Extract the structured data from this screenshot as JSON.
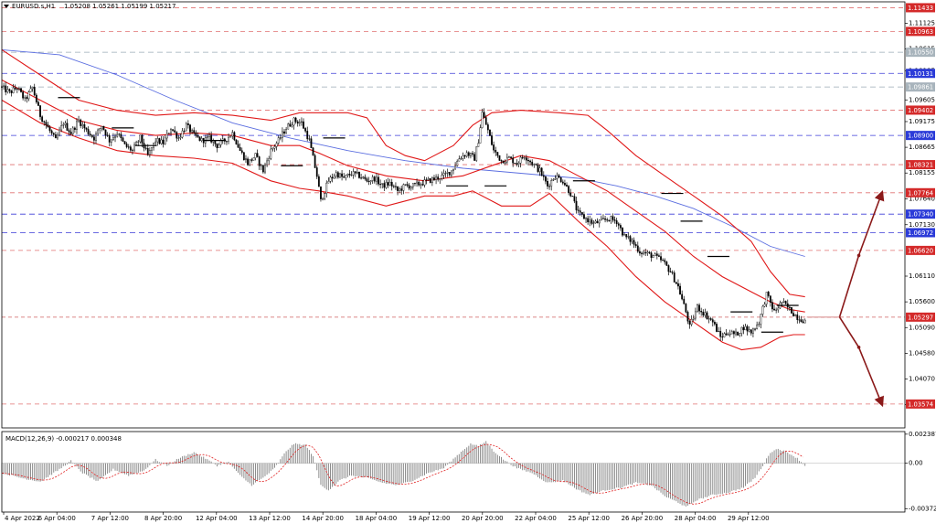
{
  "chart_data": {
    "type": "candlestick",
    "header": {
      "symbol_timeframe": "EURUSD.s,H1",
      "ohlc": "1.05208 1.05261 1.05199 1.05217"
    },
    "price_axis": {
      "ylim": [
        1.031,
        1.1155
      ],
      "ticks": [
        {
          "label": "1.11125",
          "value": 1.11125
        },
        {
          "label": "1.10615",
          "value": 1.10615
        },
        {
          "label": "1.10185",
          "value": 1.10185
        },
        {
          "label": "1.09605",
          "value": 1.09605
        },
        {
          "label": "1.09175",
          "value": 1.09175
        },
        {
          "label": "1.08665",
          "value": 1.08665
        },
        {
          "label": "1.08155",
          "value": 1.08155
        },
        {
          "label": "1.07640",
          "value": 1.0764
        },
        {
          "label": "1.07130",
          "value": 1.0713
        },
        {
          "label": "1.06110",
          "value": 1.0611
        },
        {
          "label": "1.05600",
          "value": 1.056
        },
        {
          "label": "1.05090",
          "value": 1.0509
        },
        {
          "label": "1.04580",
          "value": 1.0458
        },
        {
          "label": "1.04070",
          "value": 1.0407
        },
        {
          "label": "1.03560",
          "value": 1.0356
        }
      ],
      "levels": [
        {
          "label": "1.11433",
          "value": 1.11433,
          "kind": "resistance",
          "style": "red"
        },
        {
          "label": "1.10963",
          "value": 1.10963,
          "kind": "resistance",
          "style": "red"
        },
        {
          "label": "1.10550",
          "value": 1.1055,
          "kind": "pivot",
          "style": "gray"
        },
        {
          "label": "1.10131",
          "value": 1.10131,
          "kind": "support",
          "style": "blue"
        },
        {
          "label": "1.09861",
          "value": 1.09861,
          "kind": "pivot",
          "style": "gray"
        },
        {
          "label": "1.09402",
          "value": 1.09402,
          "kind": "resistance",
          "style": "red"
        },
        {
          "label": "1.08900",
          "value": 1.089,
          "kind": "support",
          "style": "blue"
        },
        {
          "label": "1.08321",
          "value": 1.08321,
          "kind": "resistance",
          "style": "red"
        },
        {
          "label": "1.07764",
          "value": 1.07764,
          "kind": "resistance",
          "style": "red"
        },
        {
          "label": "1.07340",
          "value": 1.0734,
          "kind": "support",
          "style": "blue"
        },
        {
          "label": "1.06972",
          "value": 1.06972,
          "kind": "support",
          "style": "blue"
        },
        {
          "label": "1.06620",
          "value": 1.0662,
          "kind": "resistance",
          "style": "red"
        },
        {
          "label": "1.05297",
          "value": 1.05297,
          "kind": "current",
          "style": "red"
        },
        {
          "label": "1.03574",
          "value": 1.03574,
          "kind": "resistance",
          "style": "red"
        }
      ],
      "hidden_label": "1.05217"
    },
    "time_axis": {
      "labels": [
        "4 Apr 2022",
        "6 Apr 04:00",
        "7 Apr 12:00",
        "8 Apr 20:00",
        "12 Apr 04:00",
        "13 Apr 12:00",
        "14 Apr 20:00",
        "18 Apr 04:00",
        "19 Apr 12:00",
        "20 Apr 20:00",
        "22 Apr 04:00",
        "25 Apr 12:00",
        "26 Apr 20:00",
        "28 Apr 04:00",
        "29 Apr 12:00"
      ]
    },
    "price_path": [
      [
        0,
        1.0985
      ],
      [
        4,
        1.0975
      ],
      [
        8,
        1.0985
      ],
      [
        12,
        1.096
      ],
      [
        16,
        1.0985
      ],
      [
        20,
        1.093
      ],
      [
        24,
        1.0905
      ],
      [
        28,
        1.088
      ],
      [
        32,
        1.0915
      ],
      [
        36,
        1.0895
      ],
      [
        40,
        1.092
      ],
      [
        44,
        1.09
      ],
      [
        48,
        1.0885
      ],
      [
        52,
        1.091
      ],
      [
        56,
        1.088
      ],
      [
        60,
        1.0895
      ],
      [
        64,
        1.087
      ],
      [
        68,
        1.086
      ],
      [
        72,
        1.0885
      ],
      [
        76,
        1.085
      ],
      [
        80,
        1.088
      ],
      [
        84,
        1.0875
      ],
      [
        88,
        1.0905
      ],
      [
        92,
        1.0885
      ],
      [
        96,
        1.091
      ],
      [
        100,
        1.089
      ],
      [
        104,
        1.088
      ],
      [
        108,
        1.0885
      ],
      [
        112,
        1.087
      ],
      [
        116,
        1.088
      ],
      [
        120,
        1.0895
      ],
      [
        124,
        1.086
      ],
      [
        128,
        1.0835
      ],
      [
        132,
        1.085
      ],
      [
        136,
        1.082
      ],
      [
        140,
        1.086
      ],
      [
        144,
        1.088
      ],
      [
        148,
        1.0905
      ],
      [
        152,
        1.092
      ],
      [
        156,
        1.0915
      ],
      [
        160,
        1.088
      ],
      [
        164,
        1.081
      ],
      [
        166,
        1.076
      ],
      [
        170,
        1.08
      ],
      [
        174,
        1.0815
      ],
      [
        178,
        1.0805
      ],
      [
        182,
        1.0815
      ],
      [
        186,
        1.081
      ],
      [
        190,
        1.08
      ],
      [
        194,
        1.0805
      ],
      [
        198,
        1.079
      ],
      [
        202,
        1.0795
      ],
      [
        206,
        1.078
      ],
      [
        210,
        1.079
      ],
      [
        214,
        1.079
      ],
      [
        218,
        1.0795
      ],
      [
        222,
        1.08
      ],
      [
        226,
        1.0805
      ],
      [
        230,
        1.081
      ],
      [
        234,
        1.082
      ],
      [
        238,
        1.0845
      ],
      [
        242,
        1.0855
      ],
      [
        246,
        1.0845
      ],
      [
        248,
        1.088
      ],
      [
        250,
        1.0935
      ],
      [
        253,
        1.09
      ],
      [
        256,
        1.086
      ],
      [
        260,
        1.084
      ],
      [
        264,
        1.0845
      ],
      [
        268,
        1.0835
      ],
      [
        272,
        1.085
      ],
      [
        276,
        1.0835
      ],
      [
        280,
        1.082
      ],
      [
        284,
        1.079
      ],
      [
        288,
        1.081
      ],
      [
        292,
        1.08
      ],
      [
        296,
        1.0775
      ],
      [
        300,
        1.0735
      ],
      [
        304,
        1.0725
      ],
      [
        308,
        1.0715
      ],
      [
        312,
        1.072
      ],
      [
        316,
        1.0725
      ],
      [
        320,
        1.072
      ],
      [
        324,
        1.069
      ],
      [
        328,
        1.068
      ],
      [
        332,
        1.066
      ],
      [
        336,
        1.0655
      ],
      [
        340,
        1.065
      ],
      [
        344,
        1.064
      ],
      [
        348,
        1.062
      ],
      [
        352,
        1.059
      ],
      [
        356,
        1.054
      ],
      [
        358,
        1.051
      ],
      [
        362,
        1.055
      ],
      [
        366,
        1.0535
      ],
      [
        370,
        1.052
      ],
      [
        374,
        1.049
      ],
      [
        378,
        1.05
      ],
      [
        382,
        1.0495
      ],
      [
        386,
        1.051
      ],
      [
        390,
        1.05
      ],
      [
        394,
        1.052
      ],
      [
        398,
        1.0575
      ],
      [
        402,
        1.054
      ],
      [
        406,
        1.056
      ],
      [
        410,
        1.0545
      ],
      [
        414,
        1.053
      ],
      [
        418,
        1.0522
      ]
    ],
    "bollinger_upper": [
      [
        0,
        1.106
      ],
      [
        20,
        1.101
      ],
      [
        40,
        1.096
      ],
      [
        60,
        1.094
      ],
      [
        80,
        1.093
      ],
      [
        100,
        1.0935
      ],
      [
        120,
        1.093
      ],
      [
        140,
        1.092
      ],
      [
        155,
        1.0935
      ],
      [
        165,
        1.0935
      ],
      [
        180,
        1.0935
      ],
      [
        190,
        1.0925
      ],
      [
        200,
        1.087
      ],
      [
        210,
        1.085
      ],
      [
        220,
        1.084
      ],
      [
        235,
        1.087
      ],
      [
        245,
        1.091
      ],
      [
        255,
        1.0935
      ],
      [
        270,
        1.094
      ],
      [
        290,
        1.0935
      ],
      [
        305,
        1.093
      ],
      [
        315,
        1.09
      ],
      [
        330,
        1.085
      ],
      [
        345,
        1.081
      ],
      [
        360,
        1.077
      ],
      [
        375,
        1.073
      ],
      [
        390,
        1.068
      ],
      [
        400,
        1.062
      ],
      [
        410,
        1.0575
      ],
      [
        418,
        1.057
      ]
    ],
    "bollinger_middle": [
      [
        0,
        1.1
      ],
      [
        20,
        1.096
      ],
      [
        40,
        1.092
      ],
      [
        60,
        1.09
      ],
      [
        80,
        1.089
      ],
      [
        100,
        1.0895
      ],
      [
        120,
        1.089
      ],
      [
        140,
        1.087
      ],
      [
        155,
        1.087
      ],
      [
        165,
        1.0855
      ],
      [
        180,
        1.083
      ],
      [
        200,
        1.081
      ],
      [
        220,
        1.08
      ],
      [
        240,
        1.081
      ],
      [
        255,
        1.083
      ],
      [
        270,
        1.085
      ],
      [
        285,
        1.084
      ],
      [
        300,
        1.081
      ],
      [
        315,
        1.078
      ],
      [
        330,
        1.074
      ],
      [
        345,
        1.07
      ],
      [
        360,
        1.065
      ],
      [
        375,
        1.061
      ],
      [
        390,
        1.058
      ],
      [
        400,
        1.056
      ],
      [
        410,
        1.0545
      ],
      [
        418,
        1.054
      ]
    ],
    "bollinger_lower": [
      [
        0,
        1.096
      ],
      [
        20,
        1.0915
      ],
      [
        40,
        1.0885
      ],
      [
        60,
        1.086
      ],
      [
        80,
        1.085
      ],
      [
        100,
        1.0845
      ],
      [
        120,
        1.0835
      ],
      [
        140,
        1.08
      ],
      [
        155,
        1.0785
      ],
      [
        165,
        1.078
      ],
      [
        180,
        1.077
      ],
      [
        200,
        1.075
      ],
      [
        210,
        1.076
      ],
      [
        220,
        1.077
      ],
      [
        235,
        1.077
      ],
      [
        245,
        1.078
      ],
      [
        260,
        1.075
      ],
      [
        275,
        1.075
      ],
      [
        285,
        1.0775
      ],
      [
        300,
        1.072
      ],
      [
        315,
        1.067
      ],
      [
        330,
        1.061
      ],
      [
        345,
        1.056
      ],
      [
        360,
        1.052
      ],
      [
        375,
        1.048
      ],
      [
        385,
        1.0465
      ],
      [
        395,
        1.047
      ],
      [
        405,
        1.049
      ],
      [
        412,
        1.0495
      ],
      [
        418,
        1.0495
      ]
    ],
    "moving_average": [
      [
        0,
        1.106
      ],
      [
        30,
        1.105
      ],
      [
        60,
        1.101
      ],
      [
        90,
        1.096
      ],
      [
        120,
        1.0915
      ],
      [
        150,
        1.0885
      ],
      [
        180,
        1.086
      ],
      [
        210,
        1.084
      ],
      [
        240,
        1.0825
      ],
      [
        270,
        1.0815
      ],
      [
        300,
        1.0805
      ],
      [
        320,
        1.079
      ],
      [
        340,
        1.077
      ],
      [
        360,
        1.0745
      ],
      [
        380,
        1.071
      ],
      [
        400,
        1.067
      ],
      [
        418,
        1.065
      ]
    ],
    "pivot_marks": [
      [
        34,
        1.0965
      ],
      [
        62,
        1.0905
      ],
      [
        74,
        1.087
      ],
      [
        110,
        1.088
      ],
      [
        150,
        1.083
      ],
      [
        172,
        1.0885
      ],
      [
        236,
        1.079
      ],
      [
        256,
        1.079
      ],
      [
        302,
        1.08
      ],
      [
        348,
        1.0775
      ],
      [
        358,
        1.072
      ],
      [
        372,
        1.065
      ],
      [
        384,
        1.054
      ],
      [
        400,
        1.05
      ],
      [
        408,
        1.0553
      ]
    ],
    "projection": {
      "origin": [
        436,
        1.05297
      ],
      "up": [
        [
          436,
          1.05297
        ],
        [
          446,
          1.0652
        ],
        [
          458,
          1.0776
        ]
      ],
      "down": [
        [
          436,
          1.05297
        ],
        [
          446,
          1.047
        ],
        [
          458,
          1.0357
        ]
      ]
    },
    "macd": {
      "label": "MACD(12,26,9) -0.000217 0.000348",
      "ylim": [
        -0.004,
        0.0026
      ],
      "ticks": [
        {
          "label": "0.002387",
          "value": 0.002387
        },
        {
          "label": "0.00",
          "value": 0.0
        },
        {
          "label": "-0.003721",
          "value": -0.003721
        }
      ],
      "histogram": [
        [
          0,
          -0.0008
        ],
        [
          10,
          -0.0012
        ],
        [
          20,
          -0.0015
        ],
        [
          30,
          -0.0005
        ],
        [
          36,
          0.0002
        ],
        [
          42,
          -0.0008
        ],
        [
          50,
          -0.0015
        ],
        [
          58,
          -0.0005
        ],
        [
          66,
          -0.001
        ],
        [
          74,
          -0.0006
        ],
        [
          80,
          0.0003
        ],
        [
          86,
          -0.0002
        ],
        [
          92,
          0.0004
        ],
        [
          100,
          0.0009
        ],
        [
          106,
          0.0004
        ],
        [
          112,
          -0.0002
        ],
        [
          118,
          0.0001
        ],
        [
          124,
          -0.001
        ],
        [
          130,
          -0.0018
        ],
        [
          136,
          -0.0012
        ],
        [
          142,
          -0.0004
        ],
        [
          148,
          0.001
        ],
        [
          152,
          0.0016
        ],
        [
          158,
          0.0015
        ],
        [
          162,
          0.0006
        ],
        [
          166,
          -0.0018
        ],
        [
          170,
          -0.0022
        ],
        [
          176,
          -0.0014
        ],
        [
          182,
          -0.001
        ],
        [
          190,
          -0.0012
        ],
        [
          198,
          -0.0016
        ],
        [
          206,
          -0.0018
        ],
        [
          214,
          -0.0014
        ],
        [
          222,
          -0.0008
        ],
        [
          230,
          -0.0004
        ],
        [
          238,
          0.0008
        ],
        [
          244,
          0.0016
        ],
        [
          248,
          0.0014
        ],
        [
          252,
          0.0018
        ],
        [
          256,
          0.001
        ],
        [
          262,
          0.0002
        ],
        [
          268,
          -0.0004
        ],
        [
          276,
          -0.0008
        ],
        [
          284,
          -0.0016
        ],
        [
          292,
          -0.0014
        ],
        [
          300,
          -0.0022
        ],
        [
          306,
          -0.0026
        ],
        [
          314,
          -0.0022
        ],
        [
          322,
          -0.002
        ],
        [
          330,
          -0.0016
        ],
        [
          338,
          -0.0018
        ],
        [
          346,
          -0.0028
        ],
        [
          352,
          -0.0032
        ],
        [
          356,
          -0.0036
        ],
        [
          362,
          -0.003
        ],
        [
          370,
          -0.0026
        ],
        [
          378,
          -0.0024
        ],
        [
          386,
          -0.002
        ],
        [
          392,
          -0.0012
        ],
        [
          396,
          -0.0002
        ],
        [
          400,
          0.0009
        ],
        [
          404,
          0.0012
        ],
        [
          410,
          0.0008
        ],
        [
          414,
          0.0004
        ],
        [
          418,
          -0.0002
        ]
      ]
    }
  }
}
